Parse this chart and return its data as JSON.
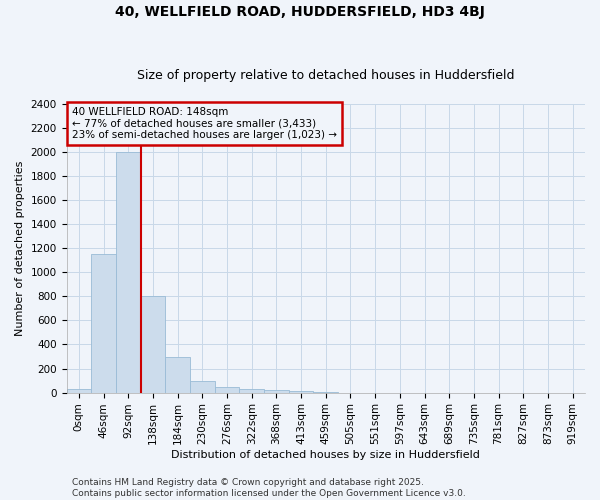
{
  "title": "40, WELLFIELD ROAD, HUDDERSFIELD, HD3 4BJ",
  "subtitle": "Size of property relative to detached houses in Huddersfield",
  "xlabel": "Distribution of detached houses by size in Huddersfield",
  "ylabel": "Number of detached properties",
  "bar_labels": [
    "0sqm",
    "46sqm",
    "92sqm",
    "138sqm",
    "184sqm",
    "230sqm",
    "276sqm",
    "322sqm",
    "368sqm",
    "413sqm",
    "459sqm",
    "505sqm",
    "551sqm",
    "597sqm",
    "643sqm",
    "689sqm",
    "735sqm",
    "781sqm",
    "827sqm",
    "873sqm",
    "919sqm"
  ],
  "bar_values": [
    30,
    1150,
    2000,
    800,
    300,
    100,
    45,
    30,
    20,
    10,
    5,
    0,
    0,
    0,
    0,
    0,
    0,
    0,
    0,
    0,
    0
  ],
  "bar_color": "#ccdcec",
  "bar_edge_color": "#99bbd6",
  "ylim": [
    0,
    2400
  ],
  "yticks": [
    0,
    200,
    400,
    600,
    800,
    1000,
    1200,
    1400,
    1600,
    1800,
    2000,
    2200,
    2400
  ],
  "property_bin_index": 3,
  "vline_color": "#cc0000",
  "annotation_line1": "40 WELLFIELD ROAD: 148sqm",
  "annotation_line2": "← 77% of detached houses are smaller (3,433)",
  "annotation_line3": "23% of semi-detached houses are larger (1,023) →",
  "annotation_box_color": "#cc0000",
  "footer_line1": "Contains HM Land Registry data © Crown copyright and database right 2025.",
  "footer_line2": "Contains public sector information licensed under the Open Government Licence v3.0.",
  "bg_color": "#f0f4fa",
  "grid_color": "#c8d8e8",
  "title_fontsize": 10,
  "subtitle_fontsize": 9,
  "axis_label_fontsize": 8,
  "tick_fontsize": 7.5,
  "annotation_fontsize": 7.5,
  "footer_fontsize": 6.5
}
